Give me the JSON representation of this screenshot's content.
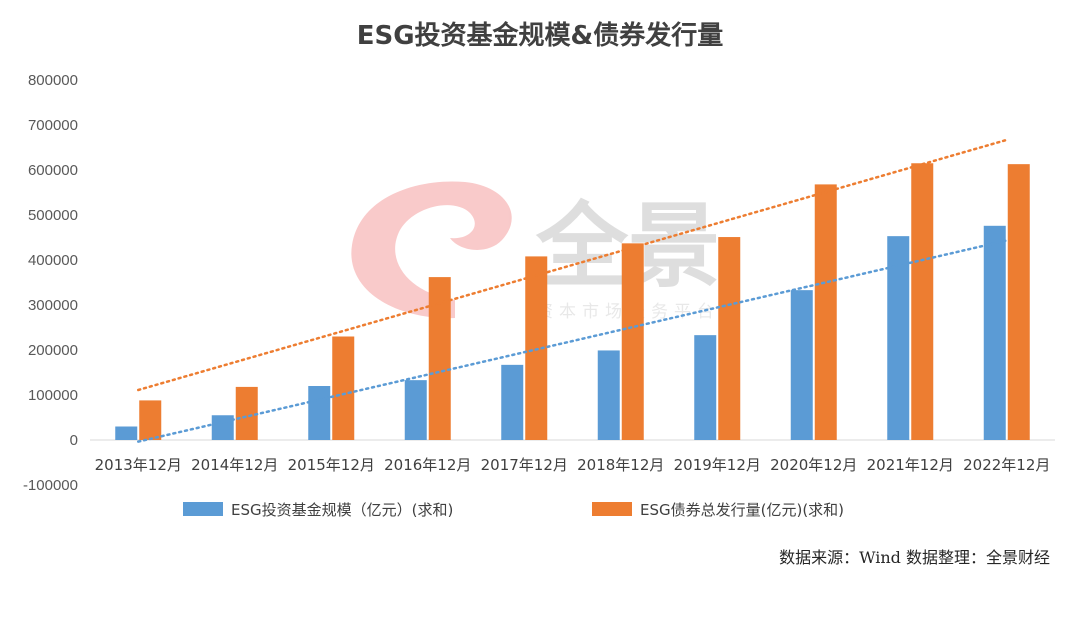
{
  "chart_data": {
    "type": "bar",
    "title": "ESG投资基金规模&债券发行量",
    "categories": [
      "2013年12月",
      "2014年12月",
      "2015年12月",
      "2016年12月",
      "2017年12月",
      "2018年12月",
      "2019年12月",
      "2020年12月",
      "2021年12月",
      "2022年12月"
    ],
    "series": [
      {
        "name": "ESG投资基金规模（亿元）(求和)",
        "color": "#5b9bd5",
        "values": [
          30000,
          55000,
          120000,
          133000,
          167000,
          199000,
          233000,
          333000,
          453000,
          476000
        ]
      },
      {
        "name": "ESG债券总发行量(亿元)(求和)",
        "color": "#ed7d31",
        "values": [
          88000,
          118000,
          230000,
          362000,
          408000,
          437000,
          451000,
          568000,
          615000,
          613000
        ]
      }
    ],
    "trendlines": [
      {
        "series": "ESG投资基金规模（亿元）(求和)",
        "type": "linear",
        "color": "#5b9bd5",
        "style": "dotted"
      },
      {
        "series": "ESG债券总发行量(亿元)(求和)",
        "type": "linear",
        "color": "#ed7d31",
        "style": "dotted"
      }
    ],
    "ylim": [
      -100000,
      800000
    ],
    "yticks": [
      "800000",
      "700000",
      "600000",
      "500000",
      "400000",
      "300000",
      "200000",
      "100000",
      "0",
      "-100000"
    ],
    "xlabel": "",
    "ylabel": "",
    "legend_position": "bottom",
    "grid": false
  },
  "source": "数据来源：Wind 数据整理：全景财经",
  "watermark": {
    "brand": "全景",
    "slogan": "资本市场服务平台"
  }
}
